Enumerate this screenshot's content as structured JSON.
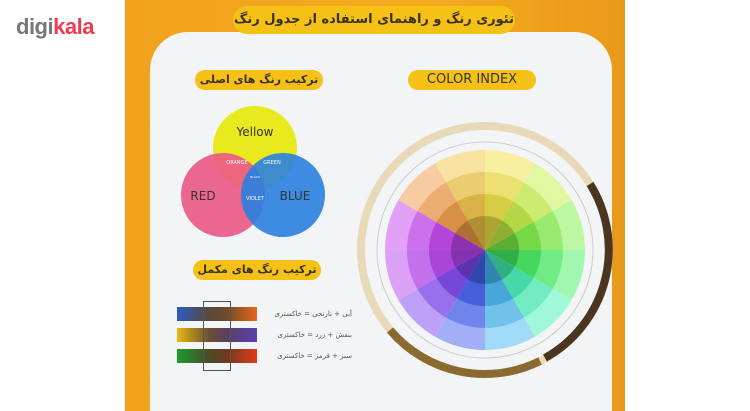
{
  "logo": {
    "part1": "digi",
    "part2": "kala"
  },
  "title": "تئوری رنگ و راهنمای استفاده از جدول رنگ",
  "primary_section": {
    "heading": "ترکیب رنگ های اصلی",
    "venn": {
      "yellow": "Yellow",
      "red": "RED",
      "blue": "BLUE",
      "orange": "ORANGE",
      "green": "GREEN",
      "violet": "VIOLET",
      "center": "BLACK"
    }
  },
  "complementary_section": {
    "heading": "ترکیب رنگ های مکمل",
    "rows": [
      {
        "label": "آبی + نارنجی = خاکستری",
        "from": "#2a5bc0",
        "to": "#e8661a"
      },
      {
        "label": "بنفش + زرد = خاکستری",
        "from": "#e8b810",
        "to": "#5a3fb0"
      },
      {
        "label": "سبز + قرمز = خاکستری",
        "from": "#1f9a2a",
        "to": "#e23a1a"
      }
    ]
  },
  "color_index": {
    "heading": "COLOR INDEX"
  },
  "colors": {
    "board": "#f3a61d",
    "pill": "#f5c116",
    "logo_accent": "#ee3b4f"
  }
}
